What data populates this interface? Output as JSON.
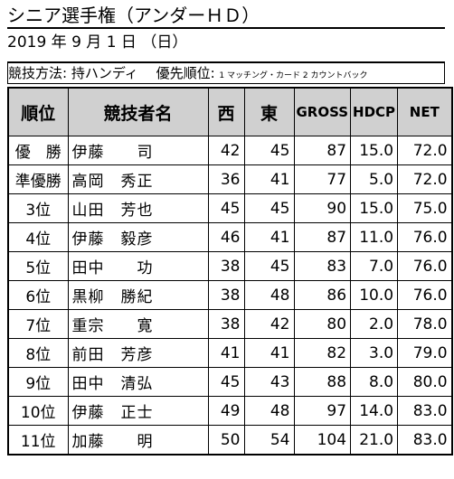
{
  "header": {
    "title": "シニア選手権（アンダーＨＤ）",
    "date": "2019 年 9 月 1 日 （日）"
  },
  "rule": {
    "method": "競技方法: 持ハンディ",
    "priority_label": "優先順位:",
    "priority": "1 マッチング・カード 2 カウントバック"
  },
  "table": {
    "columns": [
      "順位",
      "競技者名",
      "西",
      "東",
      "GROSS",
      "HDCP",
      "NET"
    ],
    "rows": [
      [
        "優　勝",
        "伊藤　　司",
        42,
        45,
        87,
        "15.0",
        "72.0"
      ],
      [
        "準優勝",
        "高岡　秀正",
        36,
        41,
        77,
        "5.0",
        "72.0"
      ],
      [
        "3位",
        "山田　芳也",
        45,
        45,
        90,
        "15.0",
        "75.0"
      ],
      [
        "4位",
        "伊藤　毅彦",
        46,
        41,
        87,
        "11.0",
        "76.0"
      ],
      [
        "5位",
        "田中　　功",
        38,
        45,
        83,
        "7.0",
        "76.0"
      ],
      [
        "6位",
        "黒柳　勝紀",
        38,
        48,
        86,
        "10.0",
        "76.0"
      ],
      [
        "7位",
        "重宗　　寛",
        38,
        42,
        80,
        "2.0",
        "78.0"
      ],
      [
        "8位",
        "前田　芳彦",
        41,
        41,
        82,
        "3.0",
        "79.0"
      ],
      [
        "9位",
        "田中　清弘",
        45,
        43,
        88,
        "8.0",
        "80.0"
      ],
      [
        "10位",
        "伊藤　正士",
        49,
        48,
        97,
        "14.0",
        "83.0"
      ],
      [
        "11位",
        "加藤　　明",
        50,
        54,
        104,
        "21.0",
        "83.0"
      ]
    ]
  }
}
